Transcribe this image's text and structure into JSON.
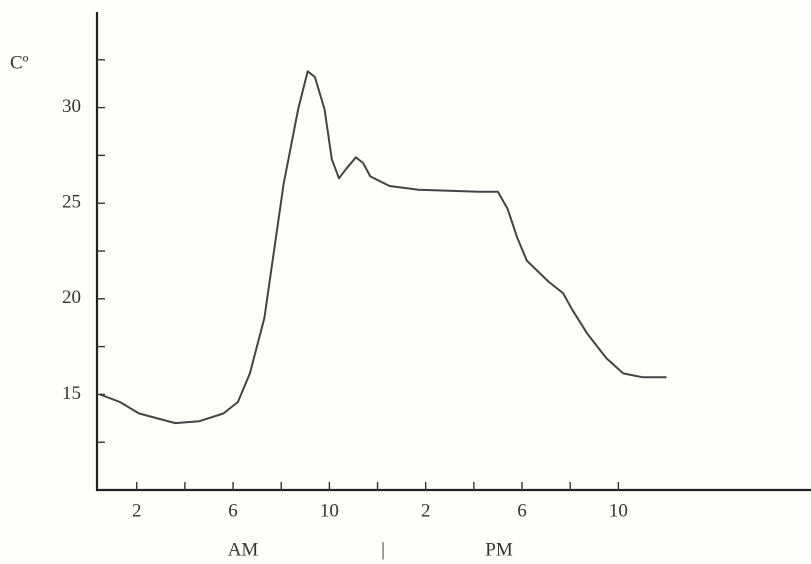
{
  "chart_data": {
    "type": "line",
    "y_label": "Cº",
    "annotations": [
      "AM",
      "|",
      "PM"
    ],
    "xlim": [
      0.35,
      30
    ],
    "ylim": [
      10,
      35
    ],
    "xticks": [
      2,
      6,
      10,
      {
        "value": 14,
        "label": "2"
      },
      {
        "value": 18,
        "label": "6"
      },
      {
        "value": 22,
        "label": "10"
      }
    ],
    "xminorticks": [
      4,
      8,
      12,
      16,
      20
    ],
    "yticks": [
      15,
      20,
      25,
      30
    ],
    "yminorticks": [
      12.5,
      17.5,
      22.5,
      27.5,
      32.5
    ],
    "series": [
      {
        "color": "#444",
        "x": [
          0.47,
          1.3,
          2.1,
          3.6,
          4.6,
          5.6,
          6.2,
          6.7,
          7.3,
          8.1,
          8.7,
          9.1,
          9.4,
          9.8,
          10.1,
          10.4,
          10.7,
          11.1,
          11.4,
          11.7,
          12.5,
          13.7,
          16.2,
          17.0,
          17.4,
          17.8,
          18.2,
          19.1,
          19.7,
          20.1,
          20.7,
          21.5,
          22.2,
          23.0,
          24.0
        ],
        "values": [
          15.0,
          14.6,
          14.0,
          13.5,
          13.6,
          14.0,
          14.6,
          16.1,
          19.0,
          26.0,
          29.9,
          31.9,
          31.6,
          29.9,
          27.3,
          26.3,
          26.8,
          27.4,
          27.1,
          26.4,
          25.9,
          25.7,
          25.6,
          25.6,
          24.7,
          23.2,
          22.0,
          20.9,
          20.3,
          19.4,
          18.2,
          16.9,
          16.1,
          15.9,
          15.9
        ]
      }
    ]
  }
}
